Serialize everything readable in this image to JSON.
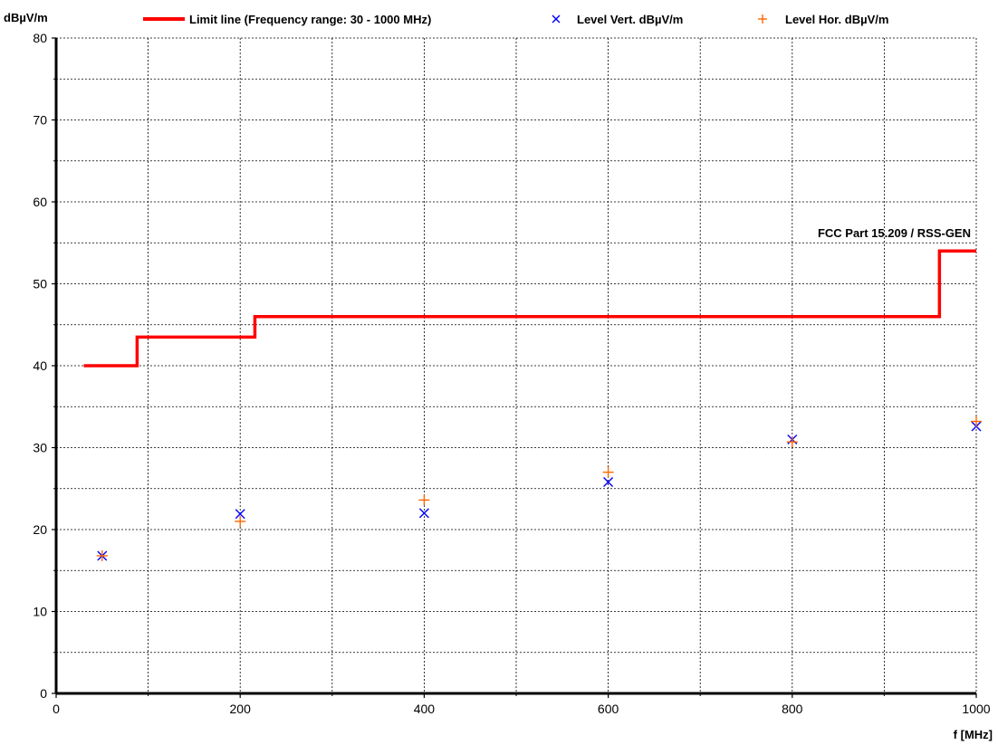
{
  "chart_data": {
    "type": "scatter",
    "ylabel": "dBµV/m",
    "xlabel": "f [MHz]",
    "xlim": [
      0,
      1000
    ],
    "ylim": [
      0,
      80
    ],
    "x_major_ticks": [
      0,
      200,
      400,
      600,
      800,
      1000
    ],
    "x_minor_gridlines": [
      100,
      300,
      500,
      700,
      900
    ],
    "y_major_ticks": [
      0,
      10,
      20,
      30,
      40,
      50,
      60,
      70,
      80
    ],
    "y_minor_gridlines": [
      5,
      15,
      25,
      35,
      45,
      55,
      65,
      75
    ],
    "grid": true,
    "legend_position": "top",
    "annotation": "FCC Part 15.209 / RSS-GEN",
    "limit_line": {
      "name": "Limit line (Frequency range: 30 - 1000 MHz)",
      "color": "#ff0000",
      "points": [
        [
          30,
          40
        ],
        [
          88,
          40
        ],
        [
          88,
          43.5
        ],
        [
          216,
          43.5
        ],
        [
          216,
          46
        ],
        [
          960,
          46
        ],
        [
          960,
          54
        ],
        [
          1000,
          54
        ]
      ]
    },
    "series": [
      {
        "name": "Level Vert. dBµV/m",
        "marker": "x",
        "color": "#0000ff",
        "points": [
          [
            50,
            16.8
          ],
          [
            200,
            21.9
          ],
          [
            400,
            22.0
          ],
          [
            600,
            25.8
          ],
          [
            800,
            31.0
          ],
          [
            1000,
            32.6
          ]
        ]
      },
      {
        "name": "Level Hor. dBµV/m",
        "marker": "+",
        "color": "#ff6600",
        "points": [
          [
            50,
            16.8
          ],
          [
            200,
            21.0
          ],
          [
            400,
            23.6
          ],
          [
            600,
            27.0
          ],
          [
            800,
            30.7
          ],
          [
            1000,
            33.2
          ]
        ]
      }
    ]
  }
}
